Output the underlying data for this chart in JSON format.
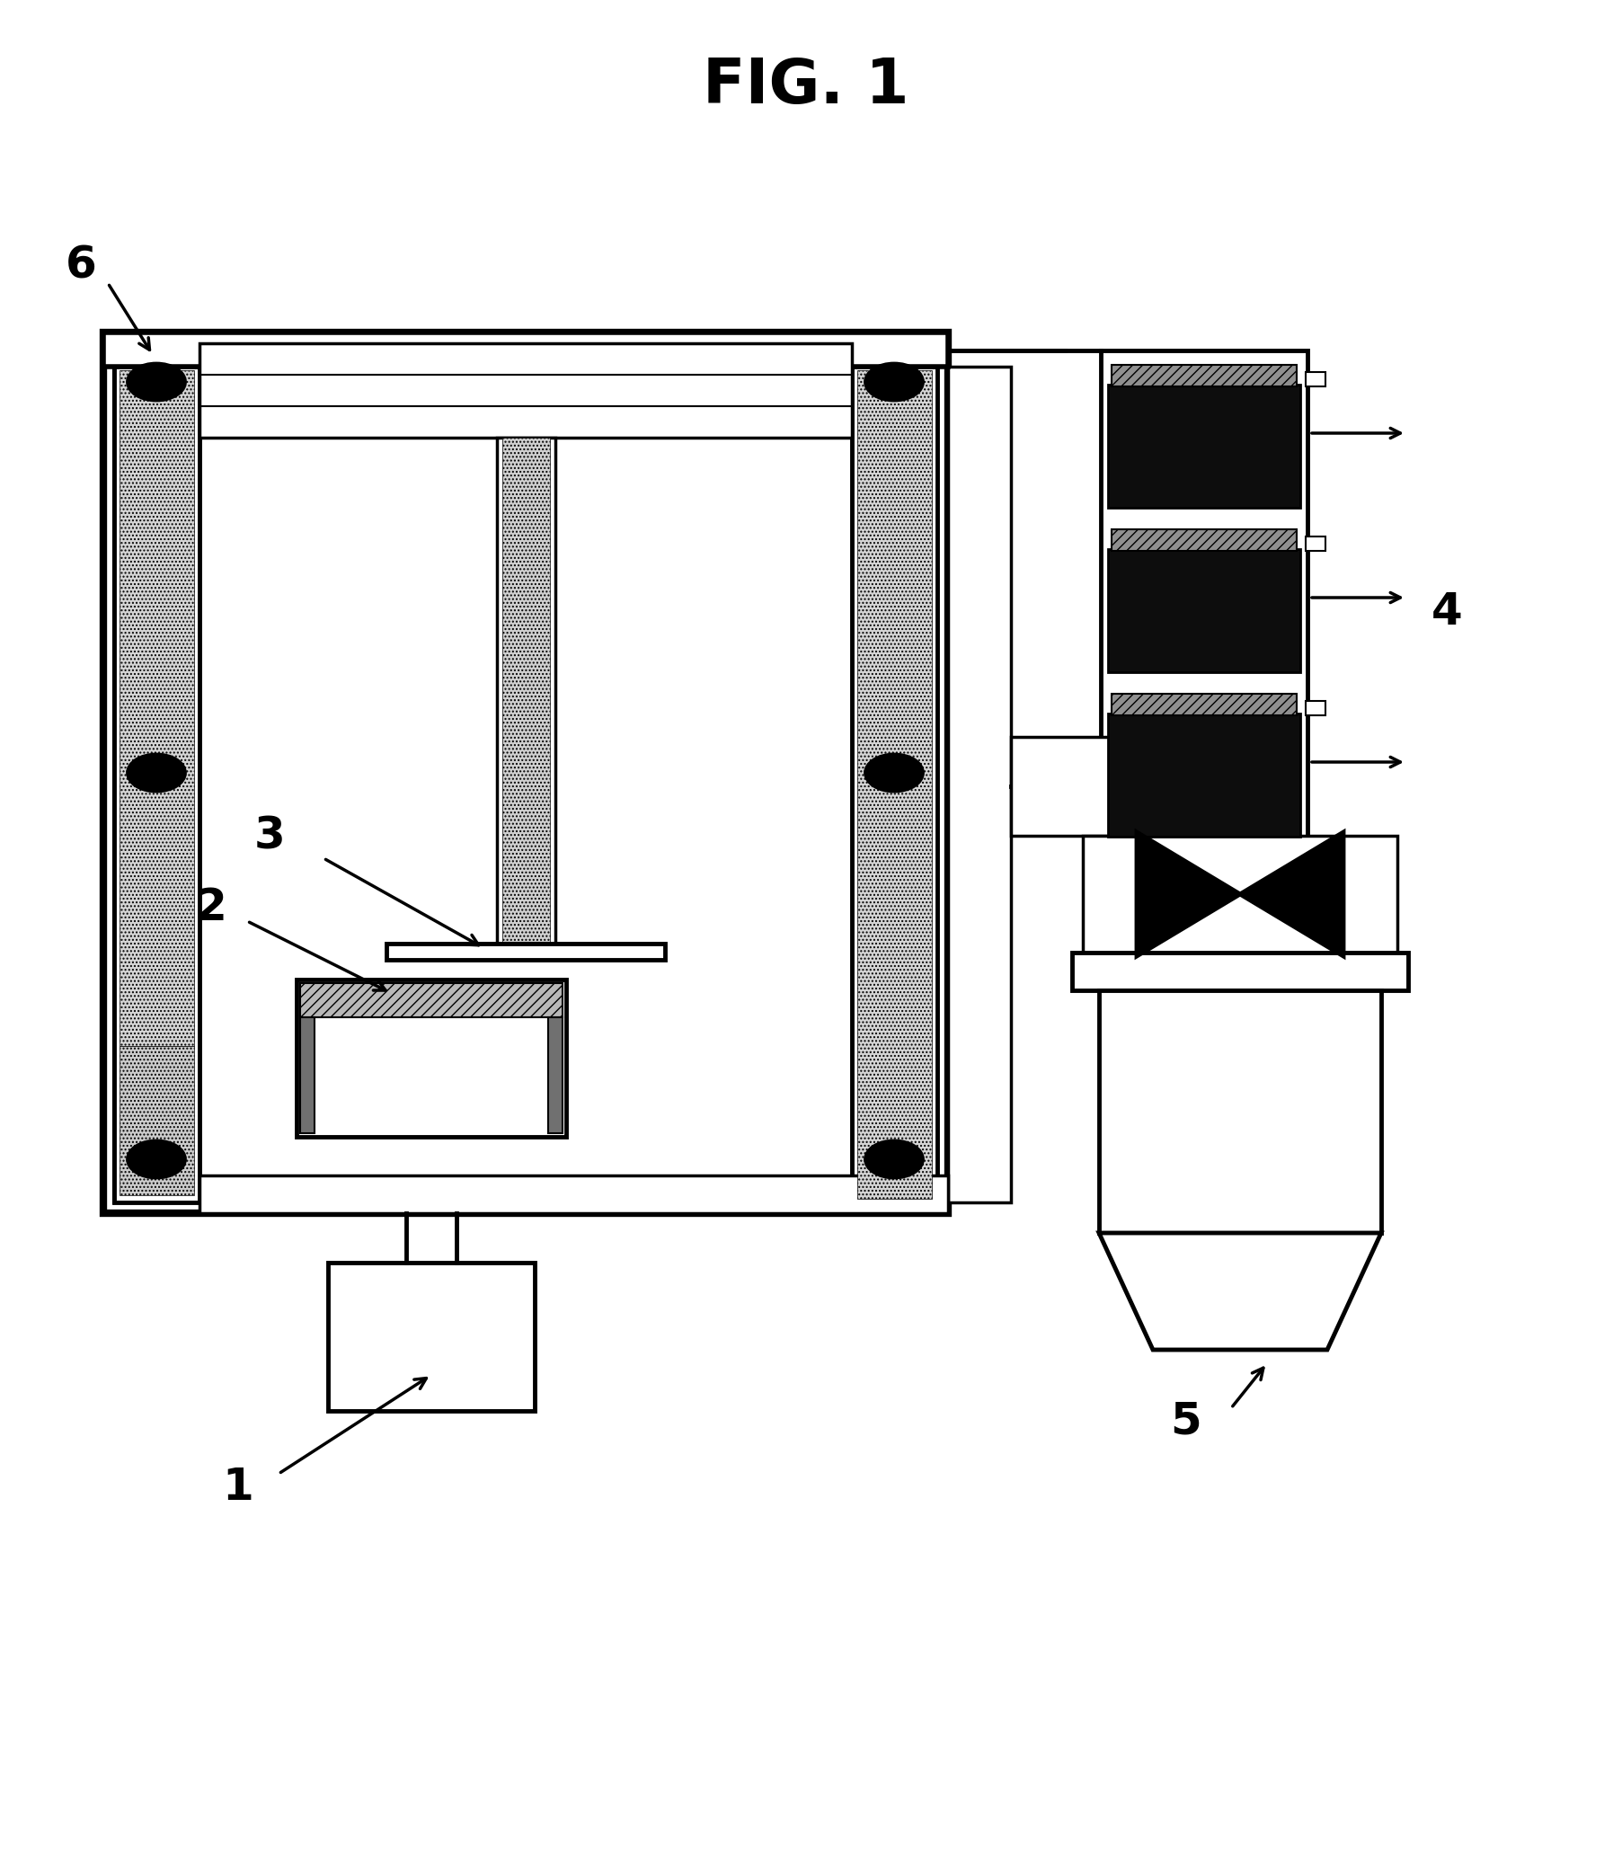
{
  "title": "FIG. 1",
  "bg": "#ffffff",
  "black": "#000000",
  "gray_dot": "#d5d5d5",
  "gray_solid": "#cccccc",
  "dark": "#111111"
}
